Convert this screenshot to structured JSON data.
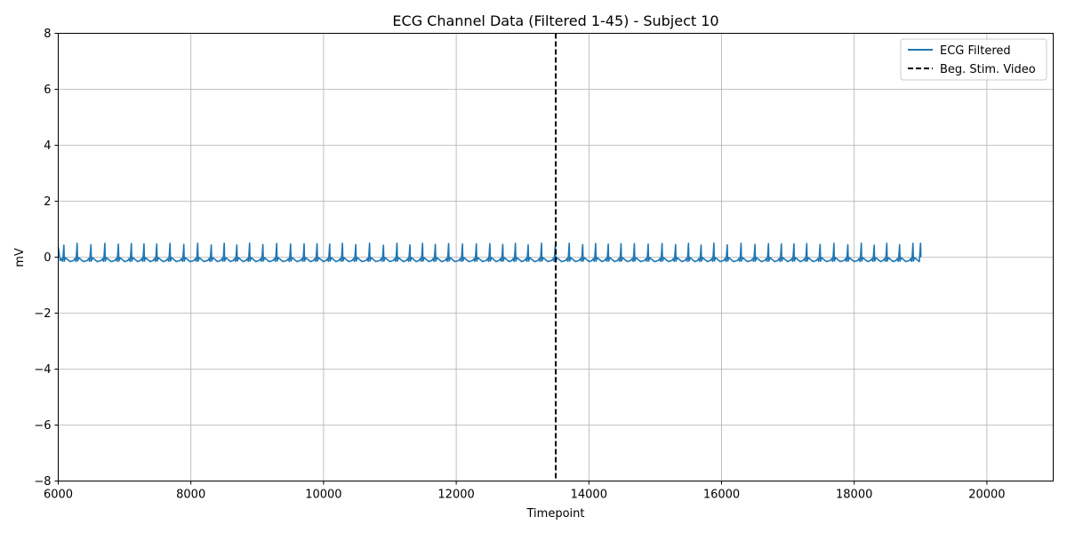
{
  "chart_data": {
    "type": "line",
    "title": "ECG Channel Data (Filtered 1-45) - Subject 10",
    "xlabel": "Timepoint",
    "ylabel": "mV",
    "xlim": [
      6000,
      21000
    ],
    "ylim": [
      -8,
      8
    ],
    "x_ticks": [
      6000,
      8000,
      10000,
      12000,
      14000,
      16000,
      18000,
      20000
    ],
    "x_tick_labels": [
      "6000",
      "8000",
      "10000",
      "12000",
      "14000",
      "16000",
      "18000",
      "20000"
    ],
    "y_ticks": [
      -8,
      -6,
      -4,
      -2,
      0,
      2,
      4,
      6,
      8
    ],
    "y_tick_labels": [
      "−8",
      "−6",
      "−4",
      "−2",
      "0",
      "2",
      "4",
      "6",
      "8"
    ],
    "grid": true,
    "legend_position": "top-right",
    "series": [
      {
        "name": "ECG Filtered",
        "color": "#1f77b4",
        "style": "solid",
        "x_start": 6000,
        "x_end": 19000,
        "baseline": -0.1,
        "beat_interval": 200,
        "peak_amplitude": 0.5
      },
      {
        "name": "Beg. Stim. Video",
        "color": "#000000",
        "style": "dashed",
        "vline_x": 13500
      }
    ]
  }
}
